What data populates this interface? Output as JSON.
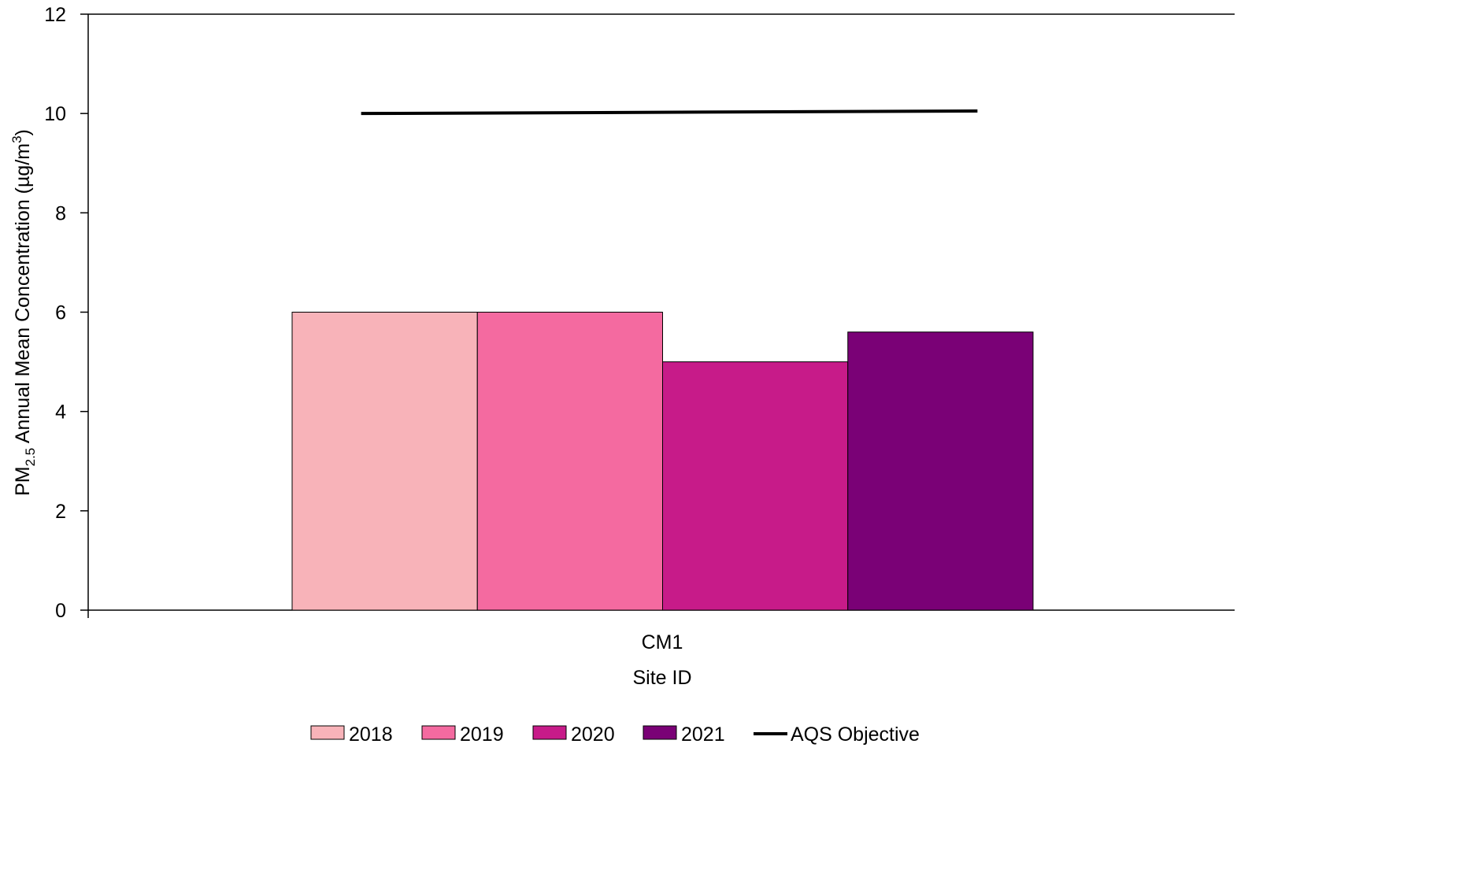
{
  "chart_data": {
    "type": "bar",
    "categories": [
      "CM1"
    ],
    "series": [
      {
        "name": "2018",
        "values": [
          6.0
        ],
        "color": "#f8b3b9"
      },
      {
        "name": "2019",
        "values": [
          6.0
        ],
        "color": "#f46aa0"
      },
      {
        "name": "2020",
        "values": [
          5.0
        ],
        "color": "#c71b89"
      },
      {
        "name": "2021",
        "values": [
          5.6
        ],
        "color": "#7a0176"
      }
    ],
    "objective": {
      "name": "AQS Objective",
      "values": [
        10.0,
        10.05
      ],
      "color": "#000000"
    },
    "xlabel": "Site ID",
    "ylabel": "PM2.5 Annual Mean Concentration (µg/m3)",
    "ylabel_parts": {
      "pre": "PM",
      "sub": "2.5",
      "mid": " Annual Mean Concentration (µg/m",
      "sup": "3",
      "post": ")"
    },
    "ylim": [
      0,
      12
    ],
    "yticks": [
      "0",
      "2",
      "4",
      "6",
      "8",
      "10",
      "12"
    ],
    "grid": false,
    "legend_position": "bottom"
  }
}
